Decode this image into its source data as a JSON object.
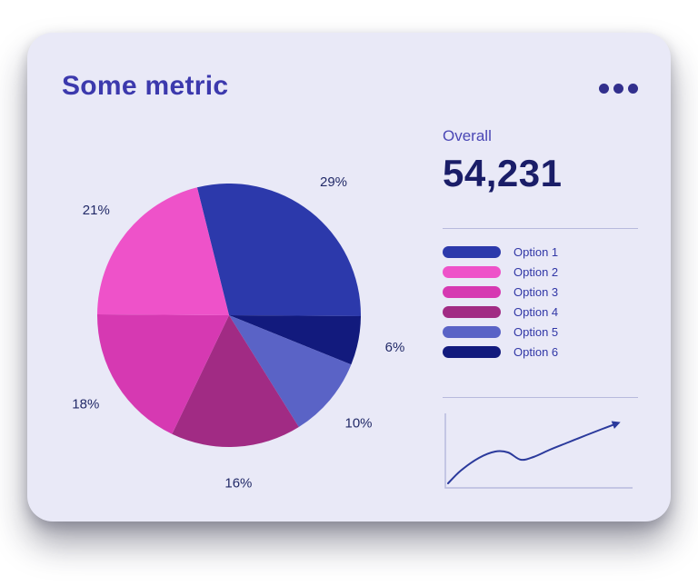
{
  "card": {
    "title": "Some metric",
    "menu_icon": "ellipsis-icon"
  },
  "stats": {
    "overall_label": "Overall",
    "overall_value": "54,231"
  },
  "colors": {
    "card_background": "#e9e9f7",
    "title_text": "#3c39ad",
    "value_text": "#1a1d68",
    "divider": "#b8badd",
    "sparkline": "#2b3a9c"
  },
  "chart_data": [
    {
      "type": "pie",
      "title": "Some metric",
      "categories": [
        "Option 1",
        "Option 2",
        "Option 3",
        "Option 4",
        "Option 5",
        "Option 6"
      ],
      "values": [
        29,
        21,
        18,
        16,
        10,
        6
      ],
      "unit": "%",
      "colors": [
        "#2c39ab",
        "#ee52c9",
        "#d639b2",
        "#a12b84",
        "#5a63c6",
        "#121a7d"
      ],
      "clockwise_order": [
        0,
        5,
        4,
        3,
        2,
        1
      ],
      "rotation_deg": -14,
      "legend_position": "right",
      "labels_outside": true
    },
    {
      "type": "line",
      "name": "trend",
      "points": [
        [
          6,
          80
        ],
        [
          20,
          66
        ],
        [
          40,
          52
        ],
        [
          58,
          45
        ],
        [
          72,
          46
        ],
        [
          86,
          54
        ],
        [
          100,
          51
        ],
        [
          118,
          43
        ],
        [
          138,
          35
        ],
        [
          158,
          27
        ],
        [
          176,
          20
        ],
        [
          192,
          14
        ]
      ],
      "arrow": true,
      "axes": true
    }
  ]
}
